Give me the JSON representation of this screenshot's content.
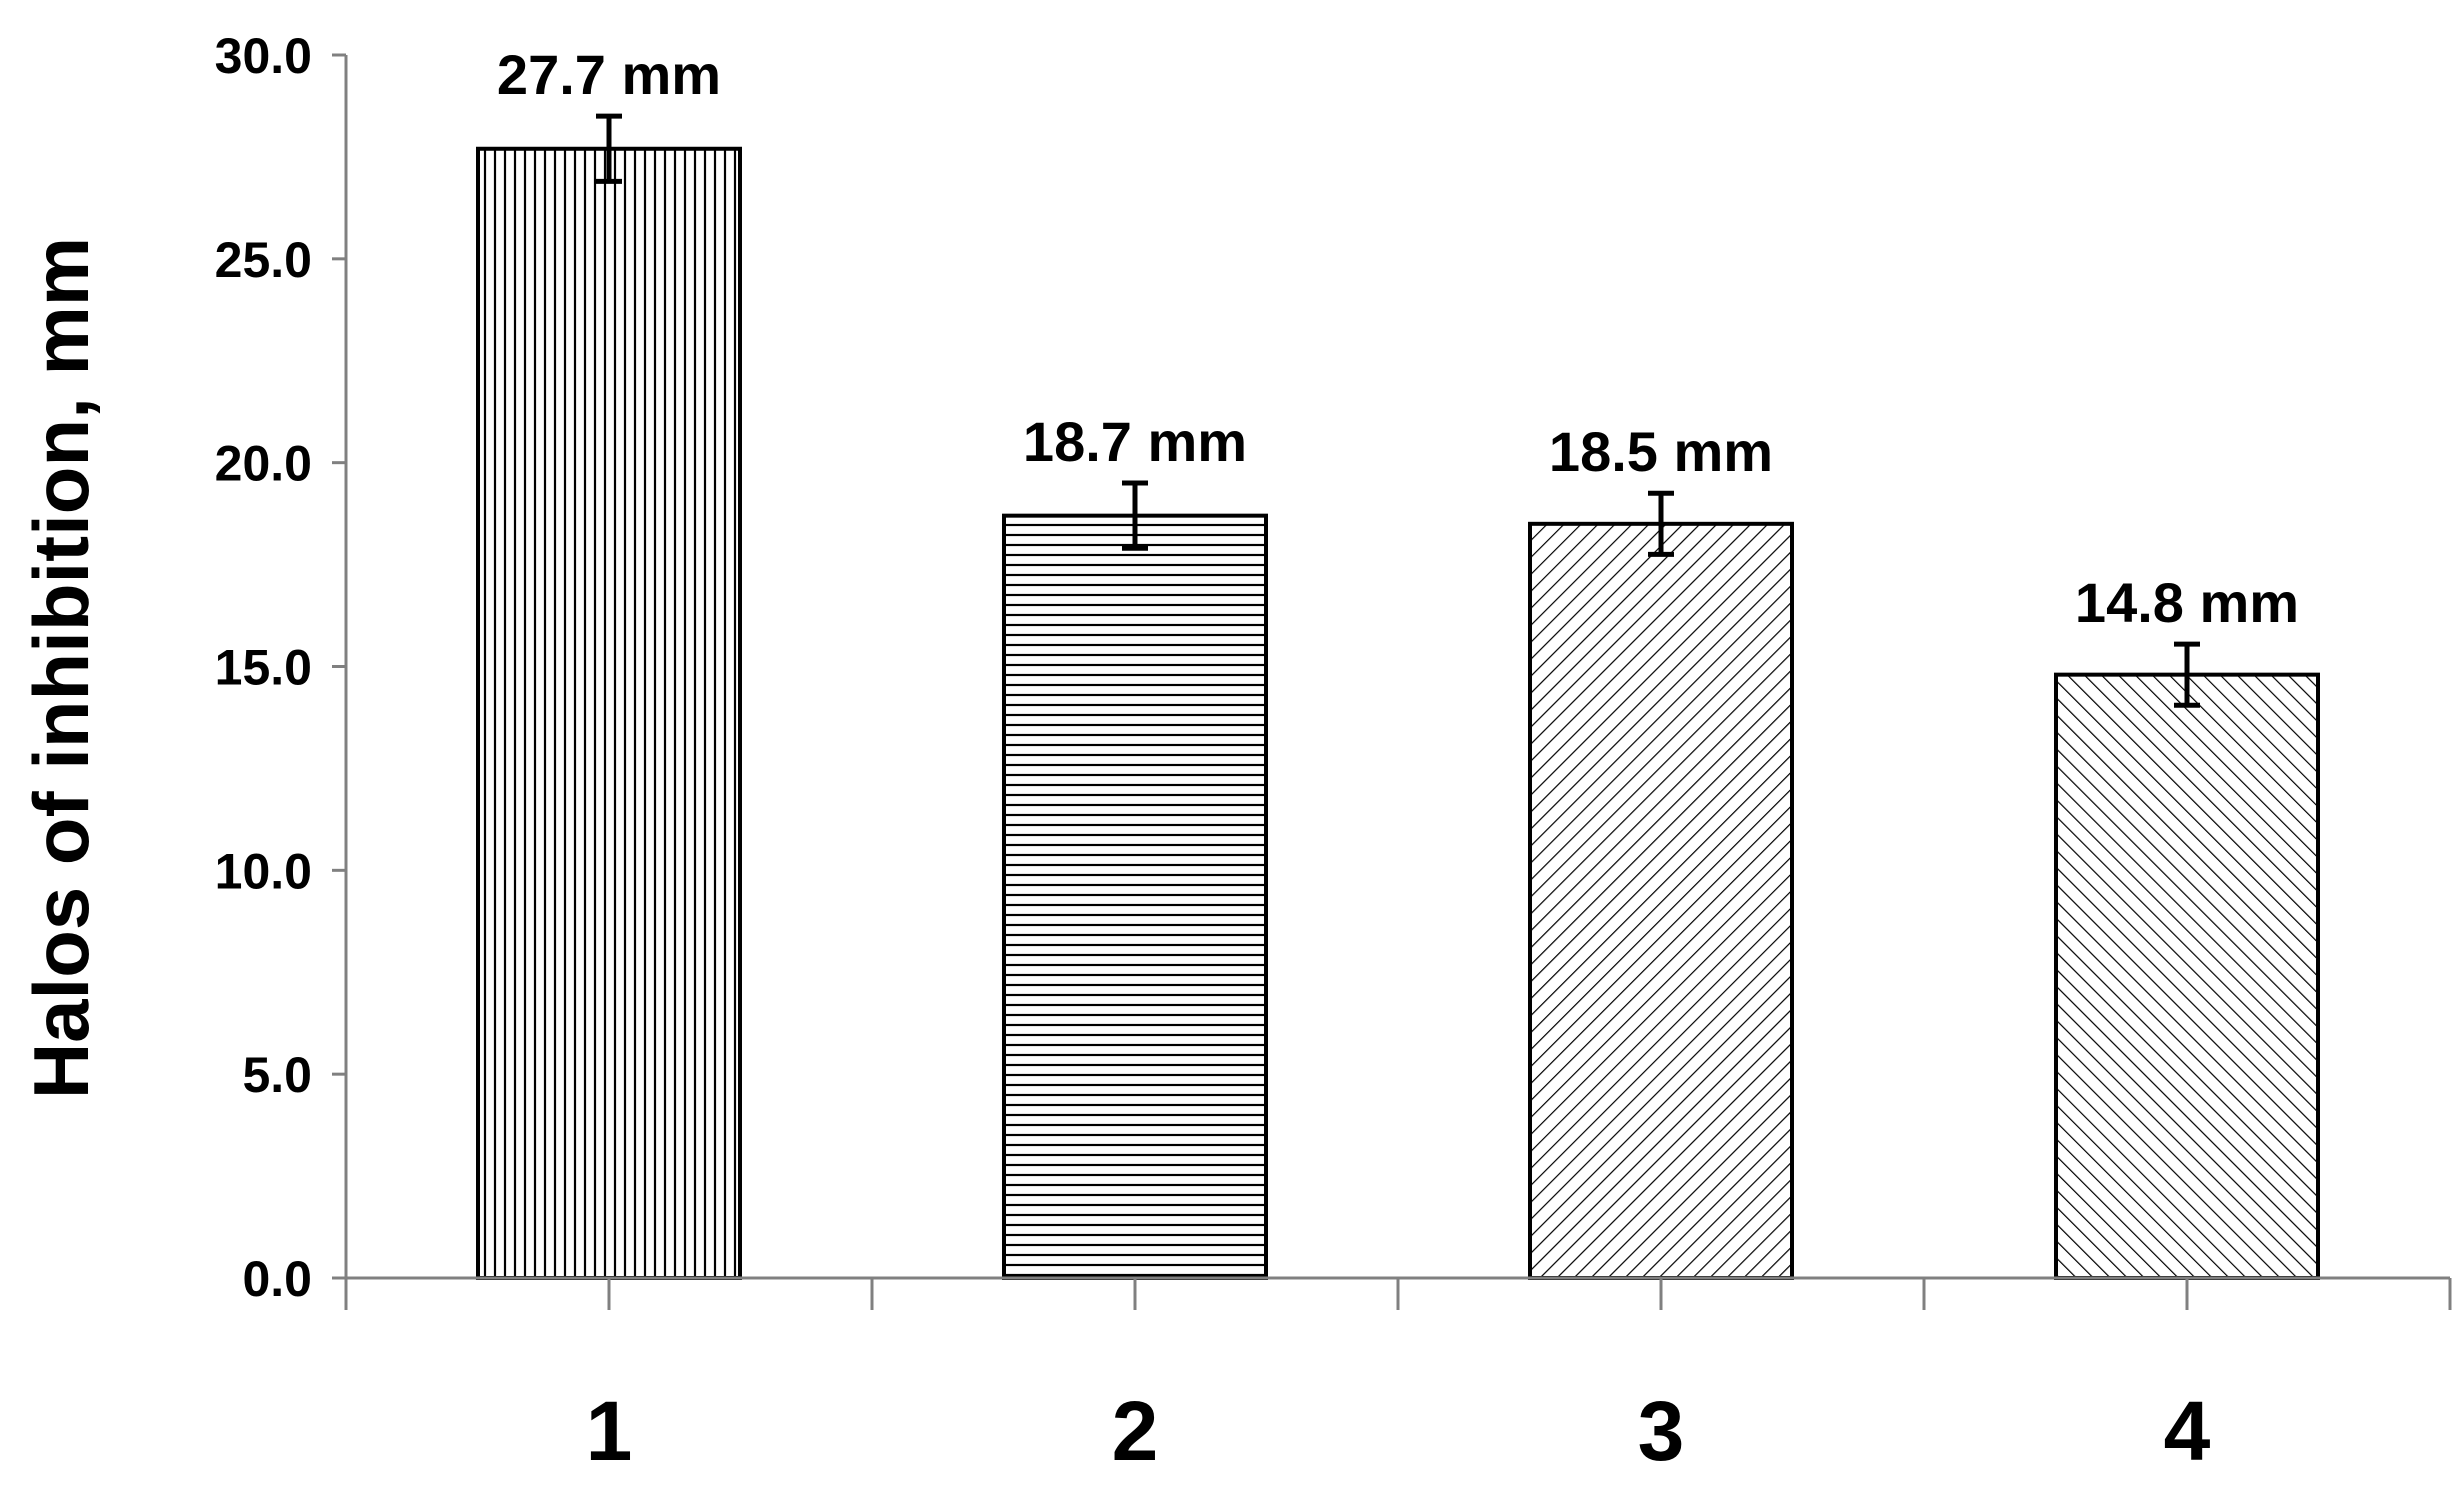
{
  "chart_data": {
    "type": "bar",
    "categories": [
      "1",
      "2",
      "3",
      "4"
    ],
    "values": [
      27.7,
      18.7,
      18.5,
      14.8
    ],
    "errors": [
      0.8,
      0.8,
      0.75,
      0.75
    ],
    "data_labels": [
      "27.7 mm",
      "18.7 mm",
      "18.5 mm",
      "14.8 mm"
    ],
    "patterns": [
      "vertical-lines",
      "horizontal-lines",
      "diagonal-down-right",
      "diagonal-up-right"
    ],
    "title": "",
    "xlabel": "",
    "ylabel": "Halos of inhibition, mm",
    "ylim": [
      0,
      30
    ],
    "yticks": [
      0,
      5,
      10,
      15,
      20,
      25,
      30
    ],
    "ytick_labels": [
      "0.0",
      "5.0",
      "10.0",
      "15.0",
      "20.0",
      "25.0",
      "30.0"
    ],
    "grid": false,
    "legend": "none",
    "colors": {
      "bar_fill": "#ffffff",
      "bar_stroke": "#000000",
      "hatch": "#000000",
      "axis": "#808080"
    }
  }
}
